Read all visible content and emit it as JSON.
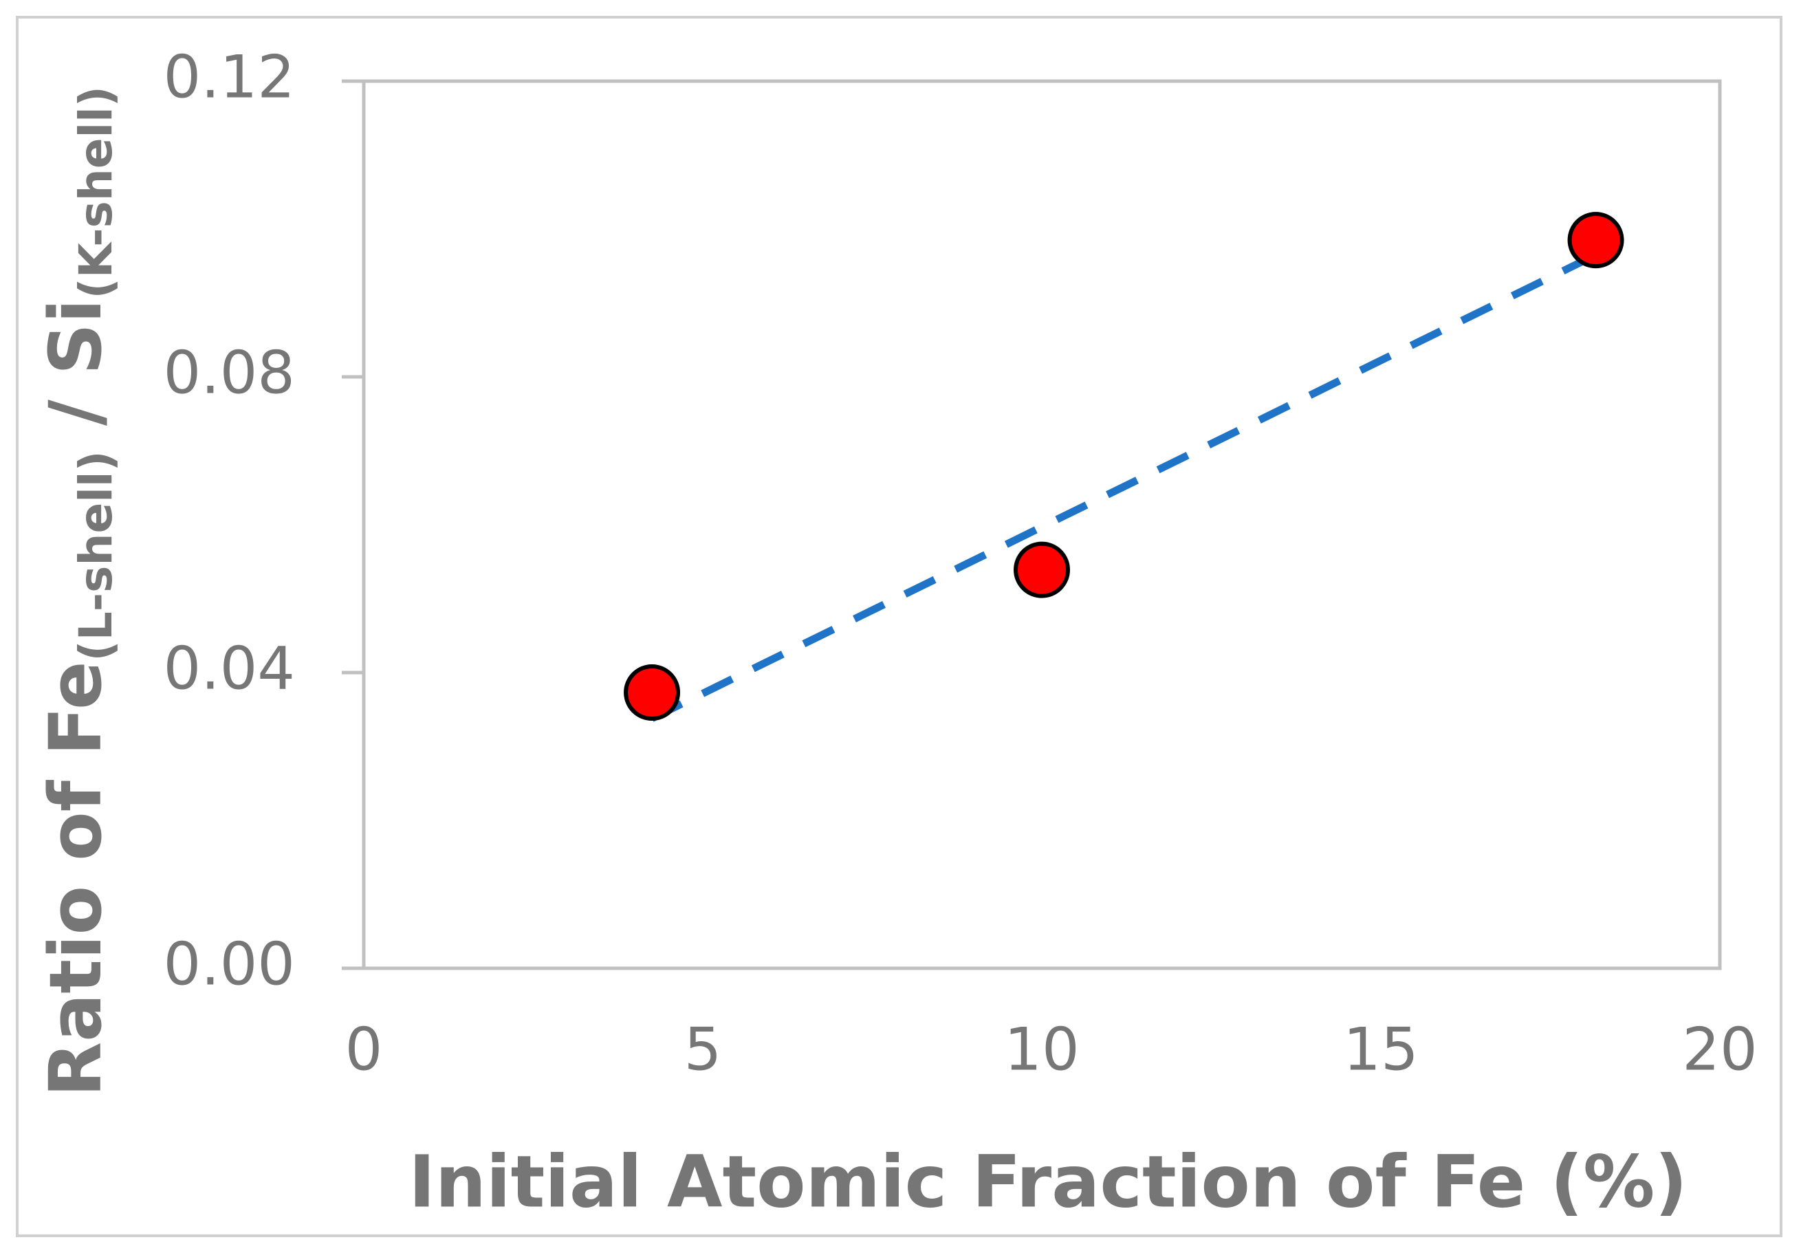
{
  "chart_data": {
    "type": "scatter",
    "x_label": "Initial Atomic Fraction of Fe (%)",
    "y_label": [
      "Ratio of Fe",
      "(L-shell)",
      " / Si",
      "(K-shell)"
    ],
    "series": [
      {
        "x": [
          4.25,
          10.0,
          18.17
        ],
        "values": [
          0.0373,
          0.0539,
          0.0985
        ],
        "color": "#ff0000"
      }
    ],
    "trendline": {
      "x": [
        4.25,
        18.17
      ],
      "values": [
        0.0338,
        0.0965
      ],
      "color": "#1f74c8",
      "dashed": true
    },
    "xlim": [
      0,
      20
    ],
    "xticks": [
      0,
      5,
      10,
      15,
      20
    ],
    "ylim": [
      0,
      0.12
    ],
    "yticks": [
      {
        "value": 0,
        "label": "0.00"
      },
      {
        "value": 0.04,
        "label": "0.04"
      },
      {
        "value": 0.08,
        "label": "0.08"
      },
      {
        "value": 0.12,
        "label": "0.12"
      }
    ],
    "grid": false
  }
}
